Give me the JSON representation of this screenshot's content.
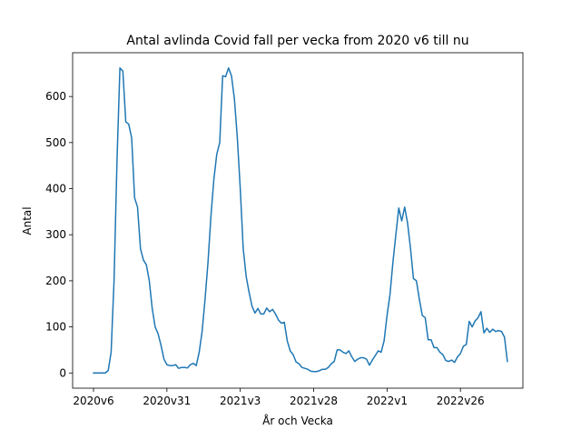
{
  "chart_data": {
    "type": "line",
    "title": "Antal avlinda Covid fall per vecka from 2020 v6 till nu",
    "xlabel": "År och Vecka",
    "ylabel": "Antal",
    "x_tick_labels": [
      "2020v6",
      "2020v31",
      "2021v3",
      "2021v28",
      "2022v1",
      "2022v26"
    ],
    "y_ticks": [
      0,
      100,
      200,
      300,
      400,
      500,
      600
    ],
    "ylim": [
      -33,
      695
    ],
    "grid": false,
    "legend": "none",
    "color": "#1f77b4",
    "series": [
      {
        "values": [
          0,
          0,
          0,
          0,
          0,
          5,
          45,
          200,
          460,
          662,
          655,
          545,
          540,
          510,
          380,
          360,
          270,
          245,
          235,
          200,
          140,
          100,
          85,
          60,
          30,
          18,
          16,
          16,
          18,
          10,
          12,
          12,
          11,
          18,
          21,
          16,
          45,
          90,
          160,
          240,
          340,
          420,
          475,
          500,
          645,
          643,
          662,
          645,
          595,
          510,
          400,
          270,
          210,
          175,
          145,
          130,
          140,
          128,
          128,
          141,
          133,
          138,
          128,
          115,
          108,
          110,
          70,
          48,
          40,
          24,
          20,
          12,
          10,
          8,
          4,
          3,
          3,
          5,
          8,
          8,
          12,
          20,
          25,
          50,
          50,
          45,
          42,
          48,
          35,
          25,
          30,
          33,
          33,
          30,
          17,
          28,
          38,
          48,
          45,
          70,
          125,
          170,
          240,
          300,
          358,
          330,
          360,
          325,
          270,
          205,
          200,
          160,
          125,
          120,
          72,
          72,
          55,
          55,
          45,
          40,
          27,
          25,
          28,
          23,
          35,
          42,
          58,
          62,
          112,
          100,
          113,
          120,
          133,
          87,
          97,
          88,
          95,
          90,
          92,
          90,
          78,
          25
        ]
      }
    ]
  }
}
